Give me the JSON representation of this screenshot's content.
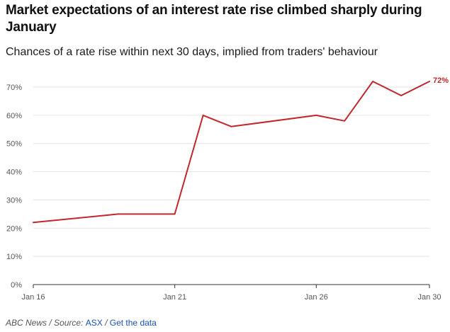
{
  "chart_data": {
    "type": "line",
    "title": "Market expectations of an interest rate rise climbed sharply during January",
    "subtitle": "Chances of a rate rise within next 30 days, implied from traders' behaviour",
    "xlabel": "",
    "ylabel": "",
    "x": [
      "Jan 16",
      "Jan 19",
      "Jan 20",
      "Jan 21",
      "Jan 22",
      "Jan 23",
      "Jan 26",
      "Jan 27",
      "Jan 28",
      "Jan 29",
      "Jan 30"
    ],
    "x_day": [
      16,
      19,
      20,
      21,
      22,
      23,
      26,
      27,
      28,
      29,
      30
    ],
    "series": [
      {
        "name": "Chance of rate rise",
        "values": [
          22,
          25,
          25,
          25,
          60,
          56,
          60,
          58,
          72,
          67,
          72
        ]
      }
    ],
    "x_ticks": [
      {
        "label": "Jan 16",
        "day": 16
      },
      {
        "label": "Jan 21",
        "day": 21
      },
      {
        "label": "Jan 26",
        "day": 26
      },
      {
        "label": "Jan 30",
        "day": 30
      }
    ],
    "y_ticks": [
      {
        "label": "0%",
        "value": 0
      },
      {
        "label": "10%",
        "value": 10
      },
      {
        "label": "20%",
        "value": 20
      },
      {
        "label": "30%",
        "value": 30
      },
      {
        "label": "40%",
        "value": 40
      },
      {
        "label": "50%",
        "value": 50
      },
      {
        "label": "60%",
        "value": 60
      },
      {
        "label": "70%",
        "value": 70
      }
    ],
    "xlim": [
      16,
      30
    ],
    "ylim": [
      0,
      70
    ],
    "grid": true,
    "end_label": "72%",
    "line_color": "#c1272d"
  },
  "footer": {
    "source_prefix": "ABC News / Source: ",
    "source_name": "ASX",
    "separator": " / ",
    "data_link": "Get the data"
  }
}
